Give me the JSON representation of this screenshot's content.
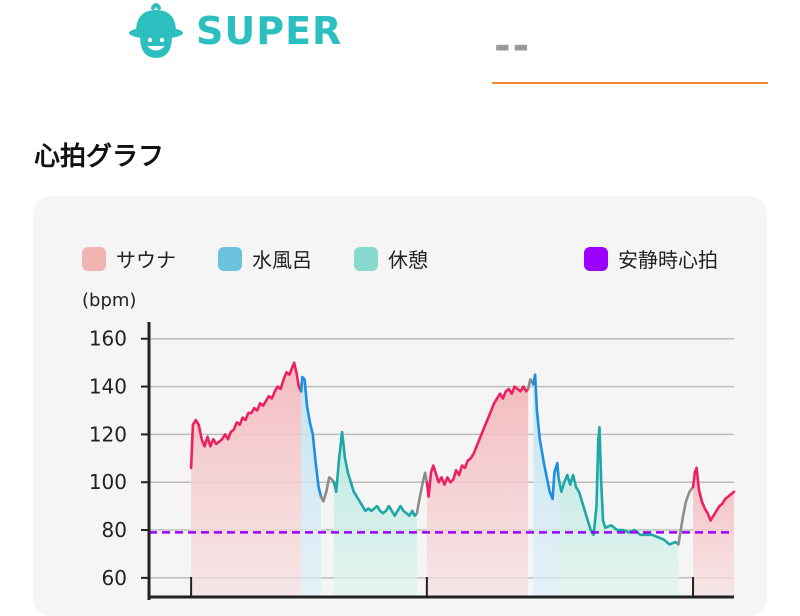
{
  "brand": {
    "name": "SUPER",
    "color": "#2bbfc0"
  },
  "header": {
    "placeholder": "--",
    "underline_color": "#f08a2c"
  },
  "section": {
    "title": "心拍グラフ"
  },
  "chart_data": {
    "type": "line",
    "unit": "(bpm)",
    "ylim": [
      52,
      167
    ],
    "y_ticks": [
      60,
      80,
      100,
      120,
      140,
      160
    ],
    "grid": true,
    "x_range": [
      0,
      100
    ],
    "resting_heart_rate": {
      "label": "安静時心拍",
      "value": 79,
      "color": "#9b00ff"
    },
    "legend": [
      {
        "label": "サウナ",
        "color": "#f2b3b3"
      },
      {
        "label": "水風呂",
        "color": "#6cc1dc"
      },
      {
        "label": "休憩",
        "color": "#86d9cc"
      }
    ],
    "phases": [
      {
        "type": "sauna",
        "start": 7.2,
        "end": 26.0
      },
      {
        "type": "cold",
        "start": 26.0,
        "end": 29.4
      },
      {
        "type": "rest",
        "start": 31.6,
        "end": 45.8
      },
      {
        "type": "sauna",
        "start": 47.5,
        "end": 64.8
      },
      {
        "type": "cold",
        "start": 65.7,
        "end": 70.0
      },
      {
        "type": "rest",
        "start": 70.0,
        "end": 90.5
      },
      {
        "type": "sauna",
        "start": 93.0,
        "end": 100
      }
    ],
    "series": [
      {
        "phase": "sauna",
        "color": "#ee2160",
        "points": [
          [
            7.2,
            106
          ],
          [
            7.5,
            124
          ],
          [
            8.0,
            126
          ],
          [
            8.5,
            124
          ],
          [
            9.0,
            118
          ],
          [
            9.5,
            115
          ],
          [
            10.0,
            119
          ],
          [
            10.5,
            115
          ],
          [
            11.0,
            118
          ],
          [
            11.5,
            116
          ],
          [
            12.0,
            117
          ],
          [
            12.5,
            118
          ],
          [
            13.0,
            120
          ],
          [
            13.5,
            118
          ],
          [
            14.0,
            121
          ],
          [
            14.5,
            122
          ],
          [
            15.0,
            125
          ],
          [
            15.5,
            124
          ],
          [
            16.0,
            127
          ],
          [
            16.5,
            126
          ],
          [
            17.0,
            129
          ],
          [
            17.5,
            129
          ],
          [
            18.0,
            131
          ],
          [
            18.5,
            130
          ],
          [
            19.0,
            133
          ],
          [
            19.5,
            132
          ],
          [
            20.0,
            134
          ],
          [
            20.5,
            136
          ],
          [
            21.0,
            135
          ],
          [
            21.5,
            138
          ],
          [
            22.0,
            140
          ],
          [
            22.5,
            139
          ],
          [
            23.0,
            143
          ],
          [
            23.5,
            146
          ],
          [
            24.0,
            145
          ],
          [
            24.5,
            148
          ],
          [
            24.8,
            150
          ],
          [
            25.2,
            146
          ],
          [
            25.6,
            140
          ],
          [
            26.0,
            138
          ]
        ]
      },
      {
        "phase": "cold",
        "color": "#1e8ee0",
        "points": [
          [
            26.0,
            138
          ],
          [
            26.2,
            144
          ],
          [
            26.6,
            143
          ],
          [
            27.0,
            132
          ],
          [
            27.5,
            125
          ],
          [
            28.0,
            120
          ],
          [
            28.5,
            108
          ],
          [
            29.0,
            98
          ],
          [
            29.4,
            94
          ]
        ]
      },
      {
        "phase": "gap",
        "color": "#8c8c8c",
        "points": [
          [
            29.4,
            94
          ],
          [
            29.8,
            92
          ],
          [
            30.3,
            96
          ],
          [
            30.8,
            102
          ],
          [
            31.3,
            101
          ],
          [
            31.6,
            100
          ]
        ]
      },
      {
        "phase": "rest",
        "color": "#1fa7a7",
        "points": [
          [
            31.6,
            100
          ],
          [
            32.0,
            96
          ],
          [
            32.5,
            110
          ],
          [
            33.0,
            121
          ],
          [
            33.5,
            110
          ],
          [
            34.0,
            104
          ],
          [
            34.5,
            100
          ],
          [
            35.0,
            96
          ],
          [
            35.5,
            94
          ],
          [
            36.0,
            92
          ],
          [
            36.5,
            90
          ],
          [
            37.0,
            88
          ],
          [
            37.5,
            89
          ],
          [
            38.0,
            88
          ],
          [
            38.5,
            89
          ],
          [
            39.0,
            90
          ],
          [
            39.5,
            88
          ],
          [
            40.0,
            87
          ],
          [
            40.5,
            88
          ],
          [
            41.0,
            90
          ],
          [
            41.5,
            88
          ],
          [
            42.0,
            86
          ],
          [
            42.5,
            88
          ],
          [
            43.0,
            90
          ],
          [
            43.5,
            88
          ],
          [
            44.0,
            87
          ],
          [
            44.5,
            86
          ],
          [
            45.0,
            88
          ],
          [
            45.4,
            86
          ],
          [
            45.8,
            87
          ]
        ]
      },
      {
        "phase": "gap",
        "color": "#8c8c8c",
        "points": [
          [
            45.8,
            87
          ],
          [
            46.3,
            94
          ],
          [
            46.8,
            100
          ],
          [
            47.2,
            104
          ],
          [
            47.5,
            100
          ]
        ]
      },
      {
        "phase": "sauna",
        "color": "#ee2160",
        "points": [
          [
            47.5,
            100
          ],
          [
            47.8,
            94
          ],
          [
            48.2,
            104
          ],
          [
            48.6,
            107
          ],
          [
            49.0,
            104
          ],
          [
            49.5,
            100
          ],
          [
            50.0,
            102
          ],
          [
            50.5,
            99
          ],
          [
            51.0,
            102
          ],
          [
            51.5,
            100
          ],
          [
            52.0,
            101
          ],
          [
            52.5,
            105
          ],
          [
            53.0,
            103
          ],
          [
            53.5,
            107
          ],
          [
            54.0,
            106
          ],
          [
            54.5,
            109
          ],
          [
            55.0,
            110
          ],
          [
            55.5,
            112
          ],
          [
            56.0,
            115
          ],
          [
            56.5,
            118
          ],
          [
            57.0,
            121
          ],
          [
            57.5,
            124
          ],
          [
            58.0,
            127
          ],
          [
            58.5,
            130
          ],
          [
            59.0,
            133
          ],
          [
            59.5,
            135
          ],
          [
            60.0,
            137
          ],
          [
            60.5,
            135
          ],
          [
            61.0,
            138
          ],
          [
            61.5,
            139
          ],
          [
            62.0,
            137
          ],
          [
            62.5,
            140
          ],
          [
            63.0,
            139
          ],
          [
            63.5,
            138
          ],
          [
            64.0,
            140
          ],
          [
            64.5,
            138
          ],
          [
            64.8,
            139
          ]
        ]
      },
      {
        "phase": "gap",
        "color": "#8c8c8c",
        "points": [
          [
            64.8,
            139
          ],
          [
            65.2,
            143
          ],
          [
            65.7,
            141
          ]
        ]
      },
      {
        "phase": "cold",
        "color": "#1e8ee0",
        "points": [
          [
            65.7,
            141
          ],
          [
            66.0,
            145
          ],
          [
            66.3,
            130
          ],
          [
            66.8,
            118
          ],
          [
            67.5,
            108
          ],
          [
            68.0,
            102
          ],
          [
            68.5,
            96
          ],
          [
            69.0,
            93
          ],
          [
            69.3,
            104
          ],
          [
            69.8,
            108
          ],
          [
            70.0,
            102
          ]
        ]
      },
      {
        "phase": "rest",
        "color": "#1fa7a7",
        "points": [
          [
            70.0,
            102
          ],
          [
            70.5,
            96
          ],
          [
            71.0,
            100
          ],
          [
            71.5,
            103
          ],
          [
            72.0,
            99
          ],
          [
            72.5,
            103
          ],
          [
            73.0,
            98
          ],
          [
            73.5,
            96
          ],
          [
            74.0,
            92
          ],
          [
            74.5,
            88
          ],
          [
            75.0,
            84
          ],
          [
            75.5,
            80
          ],
          [
            76.0,
            78
          ],
          [
            76.5,
            90
          ],
          [
            76.8,
            118
          ],
          [
            77.0,
            123
          ],
          [
            77.3,
            100
          ],
          [
            77.6,
            84
          ],
          [
            78.0,
            81
          ],
          [
            79.0,
            82
          ],
          [
            80.0,
            80
          ],
          [
            81.0,
            80
          ],
          [
            82.0,
            79
          ],
          [
            83.0,
            80
          ],
          [
            84.0,
            78
          ],
          [
            85.0,
            78
          ],
          [
            86.0,
            78
          ],
          [
            87.0,
            77
          ],
          [
            88.0,
            76
          ],
          [
            89.0,
            74
          ],
          [
            90.0,
            75
          ],
          [
            90.5,
            74
          ]
        ]
      },
      {
        "phase": "gap",
        "color": "#8c8c8c",
        "points": [
          [
            90.5,
            74
          ],
          [
            90.9,
            80
          ],
          [
            91.3,
            86
          ],
          [
            91.8,
            92
          ],
          [
            92.4,
            96
          ],
          [
            93.0,
            98
          ]
        ]
      },
      {
        "phase": "sauna",
        "color": "#ee2160",
        "points": [
          [
            93.0,
            98
          ],
          [
            93.3,
            104
          ],
          [
            93.6,
            106
          ],
          [
            94.0,
            97
          ],
          [
            94.5,
            92
          ],
          [
            95.0,
            89
          ],
          [
            95.5,
            87
          ],
          [
            96.0,
            84
          ],
          [
            96.5,
            86
          ],
          [
            97.0,
            88
          ],
          [
            97.5,
            90
          ],
          [
            98.0,
            91
          ],
          [
            98.5,
            93
          ],
          [
            99.0,
            94
          ],
          [
            99.5,
            95
          ],
          [
            100,
            96
          ]
        ]
      }
    ]
  }
}
